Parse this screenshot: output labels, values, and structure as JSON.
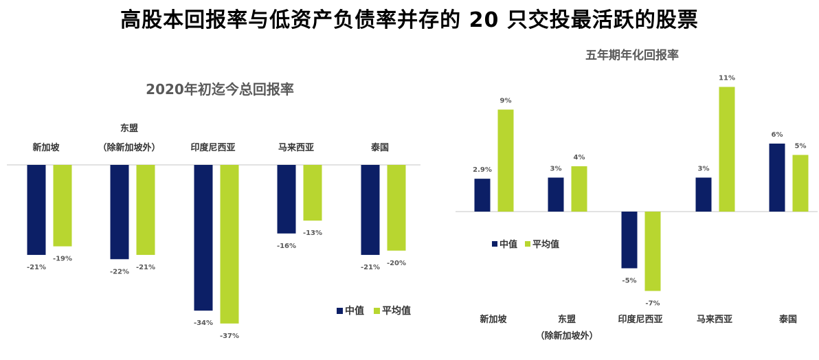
{
  "page": {
    "title": "高股本回报率与低资产负债率并存的 20 只交投最活跃的股票"
  },
  "colors": {
    "median": "#0c1f66",
    "mean": "#b8d630",
    "axis": "#d9d9d9",
    "label": "#595959"
  },
  "chart_data": [
    {
      "type": "bar",
      "title": "2020年初迄今总回报率",
      "categories": [
        [
          "新加坡"
        ],
        [
          "东盟",
          "（除新加坡外）"
        ],
        [
          "印度尼西亚"
        ],
        [
          "马来西亚"
        ],
        [
          "泰国"
        ]
      ],
      "series": [
        {
          "name": "中值",
          "values": [
            -21,
            -22,
            -34,
            -16,
            -21
          ],
          "labels": [
            "-21%",
            "-22%",
            "-34%",
            "-16%",
            "-21%"
          ]
        },
        {
          "name": "平均值",
          "values": [
            -19,
            -21,
            -37,
            -13,
            -20
          ],
          "labels": [
            "-19%",
            "-21%",
            "-37%",
            "-13%",
            "-20%"
          ]
        }
      ],
      "ylim": [
        -40,
        0
      ],
      "legend": "bottom-right",
      "grid": false
    },
    {
      "type": "bar",
      "title": "五年期年化回报率",
      "categories": [
        [
          "新加坡"
        ],
        [
          "东盟",
          "（除新加坡外）"
        ],
        [
          "印度尼西亚"
        ],
        [
          "马来西亚"
        ],
        [
          "泰国"
        ]
      ],
      "series": [
        {
          "name": "中值",
          "values": [
            2.9,
            3,
            -5,
            3,
            6
          ],
          "labels": [
            "2.9%",
            "3%",
            "-5%",
            "3%",
            "6%"
          ]
        },
        {
          "name": "平均值",
          "values": [
            9,
            4,
            -7,
            11,
            5
          ],
          "labels": [
            "9%",
            "4%",
            "-7%",
            "11%",
            "5%"
          ]
        }
      ],
      "ylim": [
        -8,
        12
      ],
      "legend": "left",
      "grid": false
    }
  ]
}
